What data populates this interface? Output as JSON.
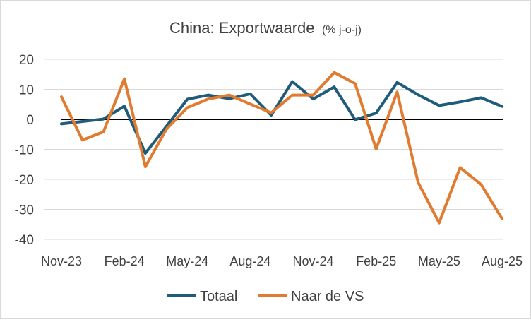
{
  "chart_data": {
    "type": "line",
    "title": "China: Exportwaarde",
    "subtitle": "(% j-o-j)",
    "xlabel": "",
    "ylabel": "",
    "ylim": [
      -40,
      20
    ],
    "yticks": [
      20,
      10,
      0,
      -10,
      -20,
      -30,
      -40
    ],
    "grid": true,
    "legend": "bottom",
    "x": [
      "Nov-23",
      "Dec-23",
      "Jan-24",
      "Feb-24",
      "Mar-24",
      "Apr-24",
      "May-24",
      "Jun-24",
      "Jul-24",
      "Aug-24",
      "Sep-24",
      "Oct-24",
      "Nov-24",
      "Dec-24",
      "Jan-25",
      "Feb-25",
      "Mar-25",
      "Apr-25",
      "May-25",
      "Jun-25",
      "Jul-25",
      "Aug-25"
    ],
    "xtick_labels": [
      "Nov-23",
      "Feb-24",
      "May-24",
      "Aug-24",
      "Nov-24",
      "Feb-25",
      "May-25",
      "Aug-25"
    ],
    "series": [
      {
        "name": "Totaal",
        "color": "#1f5b7a",
        "values": [
          -1.5,
          -0.7,
          0.1,
          4.4,
          -11.3,
          -2.3,
          6.7,
          8.1,
          6.9,
          8.5,
          1.4,
          12.6,
          6.8,
          10.8,
          -0.1,
          2.1,
          12.3,
          8.2,
          4.6,
          5.8,
          7.2,
          4.3
        ]
      },
      {
        "name": "Naar de VS",
        "color": "#e07b30",
        "values": [
          7.5,
          -6.9,
          -4.2,
          13.5,
          -15.8,
          -3.3,
          3.9,
          6.8,
          8.1,
          5.1,
          2.2,
          8.1,
          8.1,
          15.6,
          11.9,
          -9.9,
          9.1,
          -21.0,
          -34.5,
          -16.1,
          -21.7,
          -33.1
        ]
      }
    ]
  }
}
